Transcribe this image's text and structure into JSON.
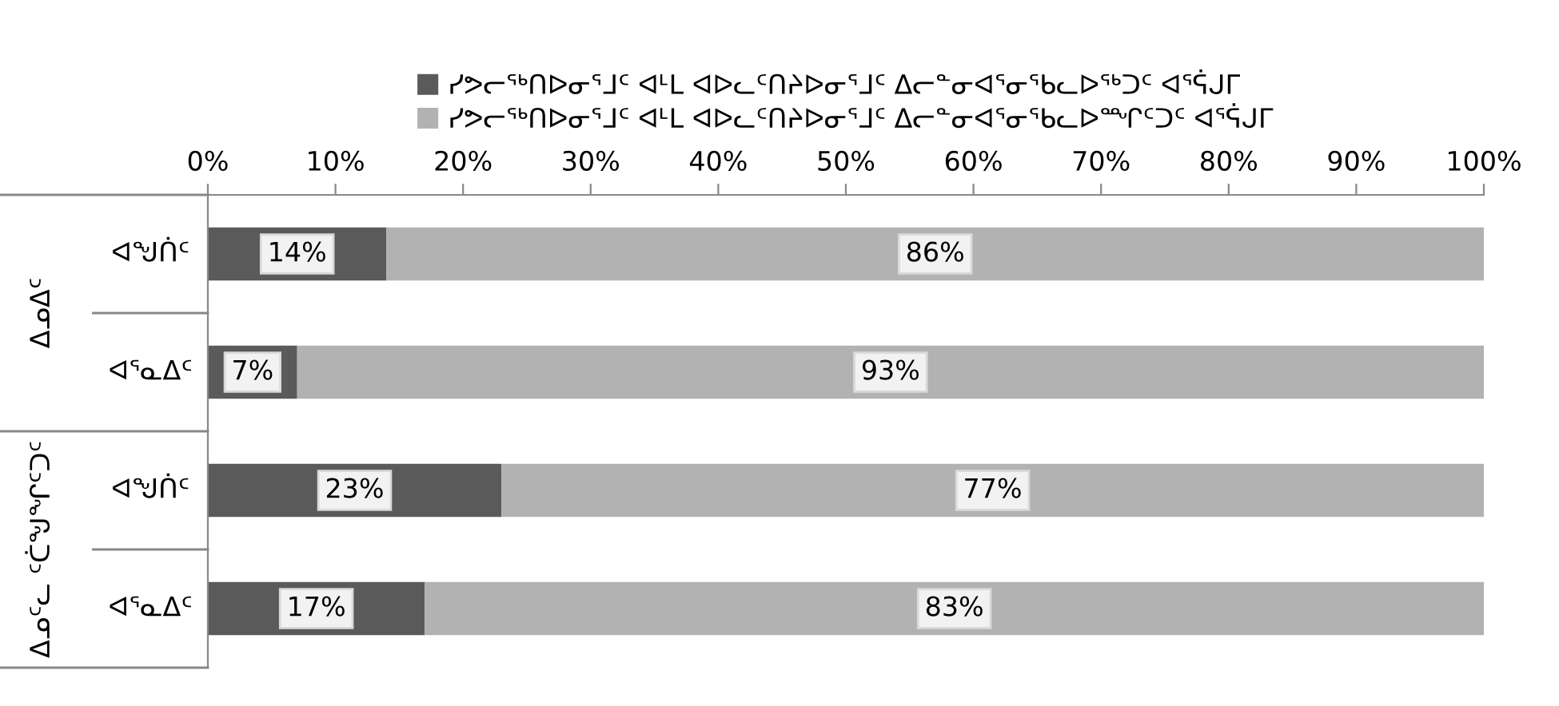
{
  "chart_data": {
    "type": "bar",
    "orientation": "horizontal",
    "stacked": true,
    "legend": "top",
    "grid": false,
    "categories": [
      "ᐊᖑᑏᑦ",
      "ᐊᕐᓇᐃᑦ",
      "ᐊᖑᑏᑦ",
      "ᐊᕐᓇᐃᑦ"
    ],
    "annotations": [
      "ᐃᓄᐃᑦ",
      "ᐃᓄᑦᓚ ᑦᑖᖑᖏᑦᑐᑦ"
    ],
    "series": [
      {
        "name": "ᓯᕗᓕᖅᑎᐅᓂᕐᒧᑦ ᐊᒻᒪ ᐊᐅᓚᑦᑎᔨᐅᓂᕐᒧᑦ ᐃᓕᓐᓂᐊᕐᓂᖃᓚᐅᖅᑐᑦ ᐊᕐᕌᒍᒥ",
        "color": "#5a5a5a",
        "values": [
          14,
          7,
          23,
          17
        ],
        "value_labels": [
          "14%",
          "7%",
          "23%",
          "17%"
        ]
      },
      {
        "name": "ᓯᕗᓕᖅᑎᐅᓂᕐᒧᑦ ᐊᒻᒪ ᐊᐅᓚᑦᑎᔨᐅᓂᕐᒧᑦ ᐃᓕᓐᓂᐊᕐᓂᖃᓚᐅᙱᑦᑐᑦ ᐊᕐᕌᒍᒥ",
        "color": "#b2b2b2",
        "values": [
          86,
          93,
          77,
          83
        ],
        "value_labels": [
          "86%",
          "93%",
          "77%",
          "83%"
        ]
      }
    ],
    "xlim": [
      0,
      100
    ],
    "xticks": [
      {
        "value": 0,
        "label": "0%"
      },
      {
        "value": 10,
        "label": "10%"
      },
      {
        "value": 20,
        "label": "20%"
      },
      {
        "value": 30,
        "label": "30%"
      },
      {
        "value": 40,
        "label": "40%"
      },
      {
        "value": 50,
        "label": "50%"
      },
      {
        "value": 60,
        "label": "60%"
      },
      {
        "value": 70,
        "label": "70%"
      },
      {
        "value": 80,
        "label": "80%"
      },
      {
        "value": 90,
        "label": "90%"
      },
      {
        "value": 100,
        "label": "100%"
      }
    ]
  }
}
